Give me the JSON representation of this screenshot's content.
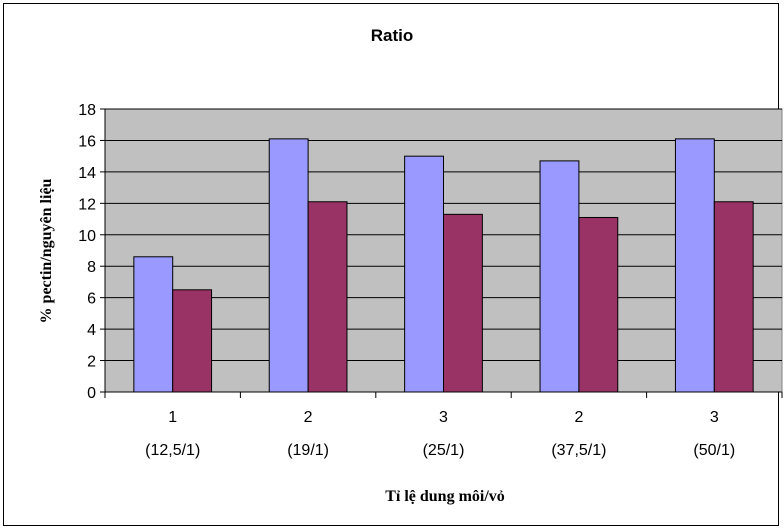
{
  "chart_data": {
    "type": "bar",
    "title": "Ratio",
    "xlabel": "Tỉ lệ dung môi/vỏ",
    "ylabel": "% pectin/nguyên liệu",
    "ylim": [
      0,
      18
    ],
    "yticks": [
      0,
      2,
      4,
      6,
      8,
      10,
      12,
      14,
      16,
      18
    ],
    "grid": true,
    "legend": "none",
    "categories": [
      {
        "line1": "1",
        "line2": "(12,5/1)"
      },
      {
        "line1": "2",
        "line2": "(19/1)"
      },
      {
        "line1": "3",
        "line2": "(25/1)"
      },
      {
        "line1": "2",
        "line2": "(37,5/1)"
      },
      {
        "line1": "3",
        "line2": "(50/1)"
      }
    ],
    "series": [
      {
        "values": [
          8.6,
          16.1,
          15.0,
          14.7,
          16.1
        ],
        "color": "#9999FF"
      },
      {
        "values": [
          6.5,
          12.1,
          11.3,
          11.1,
          12.1
        ],
        "color": "#993366"
      }
    ],
    "plot_background": "#C0C0C0"
  }
}
